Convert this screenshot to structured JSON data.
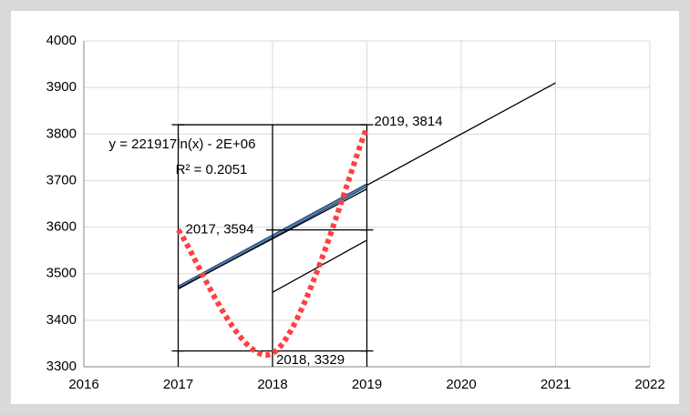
{
  "chart_data": {
    "type": "scatter",
    "series": [
      {
        "color": "#ff4040",
        "x": [
          2017,
          2018,
          2019
        ],
        "values": [
          3594,
          3329,
          3814
        ],
        "value_labels": [
          "2017, 3594",
          "2018, 3329",
          "2019, 3814"
        ]
      }
    ],
    "lines": [
      {
        "color": "#000000",
        "x": [
          2017,
          2021
        ],
        "y": [
          3470,
          3910
        ]
      },
      {
        "color": "#4f81bd",
        "x": [
          2017,
          2019
        ],
        "y": [
          3470,
          3690
        ]
      },
      {
        "color": "#000000",
        "x": [
          2017,
          2019
        ],
        "y": [
          3468,
          3682
        ]
      },
      {
        "color": "#000000",
        "x": [
          2018,
          2019
        ],
        "y": [
          3460,
          3572
        ]
      },
      {
        "color": "#000000",
        "x": [
          2017,
          2019
        ],
        "y": [
          3820,
          3820
        ]
      },
      {
        "color": "#000000",
        "x": [
          2017,
          2019
        ],
        "y": [
          3334,
          3334
        ]
      },
      {
        "color": "#000000",
        "x": [
          2018,
          2019
        ],
        "y": [
          3594,
          3594
        ]
      },
      {
        "color": "#000000",
        "x": [
          2017,
          2017
        ],
        "y": [
          3300,
          3820
        ]
      },
      {
        "color": "#000000",
        "x": [
          2018,
          2018
        ],
        "y": [
          3300,
          3820
        ]
      },
      {
        "color": "#000000",
        "x": [
          2019,
          2019
        ],
        "y": [
          3300,
          3820
        ]
      }
    ],
    "annotations": [
      "y = 221917ln(x) - 2E+06",
      "R² = 0.2051"
    ],
    "xlim": [
      2016,
      2022
    ],
    "xticks": [
      2016,
      2017,
      2018,
      2019,
      2020,
      2021,
      2022
    ],
    "ylim": [
      3300,
      4000
    ],
    "yticks": [
      3300,
      3400,
      3500,
      3600,
      3700,
      3800,
      3900,
      4000
    ],
    "grid": true
  }
}
